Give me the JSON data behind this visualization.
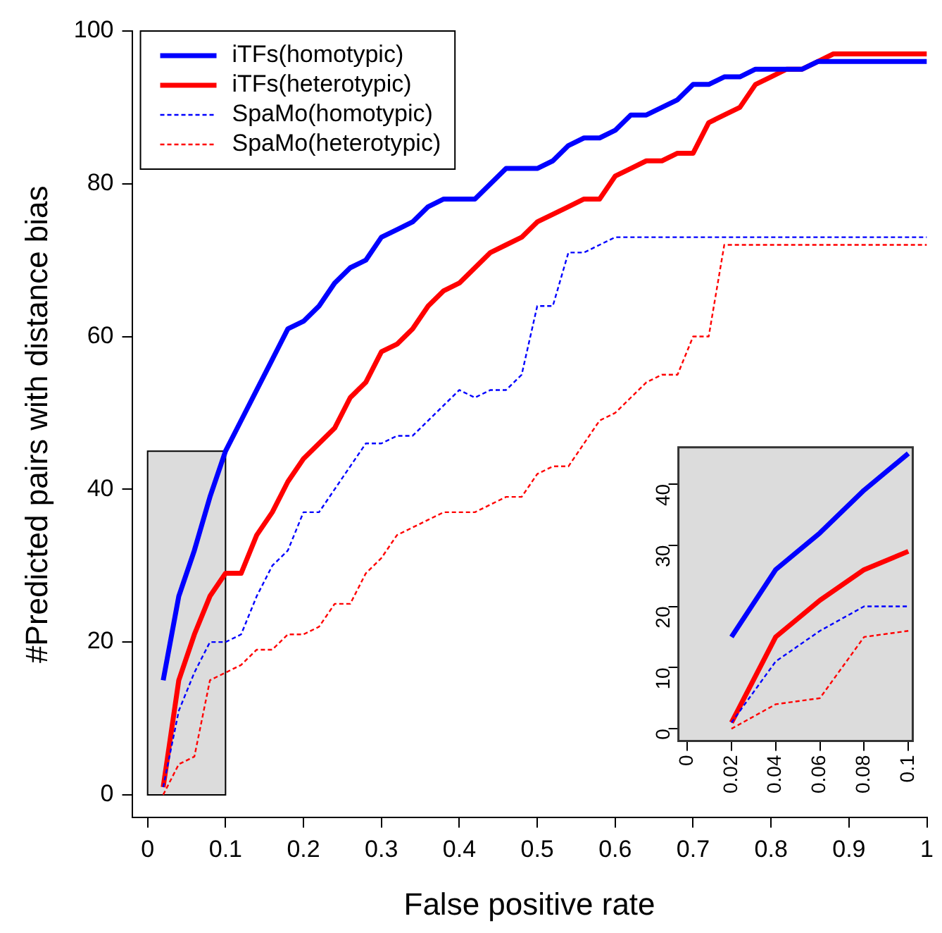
{
  "chart_data": [
    {
      "type": "line",
      "xlabel": "False positive rate",
      "ylabel": "#Predicted pairs with distance bias",
      "x": [
        0.02,
        0.04,
        0.06,
        0.08,
        0.1,
        0.12,
        0.14,
        0.16,
        0.18,
        0.2,
        0.22,
        0.24,
        0.26,
        0.28,
        0.3,
        0.32,
        0.34,
        0.36,
        0.38,
        0.4,
        0.42,
        0.44,
        0.46,
        0.48,
        0.5,
        0.52,
        0.54,
        0.56,
        0.58,
        0.6,
        0.62,
        0.64,
        0.66,
        0.68,
        0.7,
        0.72,
        0.74,
        0.76,
        0.78,
        0.8,
        0.82,
        0.84,
        0.86,
        0.88,
        0.9,
        0.92,
        0.94,
        0.96,
        0.98,
        1
      ],
      "series": [
        {
          "name": "iTFs(homotypic)",
          "color": "#0000ff",
          "line_style": "solid",
          "values": [
            15,
            26,
            32,
            39,
            45,
            49,
            53,
            57,
            61,
            62,
            64,
            67,
            69,
            70,
            73,
            74,
            75,
            77,
            78,
            78,
            78,
            80,
            82,
            82,
            82,
            83,
            85,
            86,
            86,
            87,
            89,
            89,
            90,
            91,
            93,
            93,
            94,
            94,
            95,
            95,
            95,
            95,
            96,
            96,
            96,
            96,
            96,
            96,
            96,
            96
          ]
        },
        {
          "name": "iTFs(heterotypic)",
          "color": "#ff0000",
          "line_style": "solid",
          "values": [
            1,
            15,
            21,
            26,
            29,
            29,
            34,
            37,
            41,
            44,
            46,
            48,
            52,
            54,
            58,
            59,
            61,
            64,
            66,
            67,
            69,
            71,
            72,
            73,
            75,
            76,
            77,
            78,
            78,
            81,
            82,
            83,
            83,
            84,
            84,
            88,
            89,
            90,
            93,
            94,
            95,
            95,
            96,
            97,
            97,
            97,
            97,
            97,
            97,
            97
          ]
        },
        {
          "name": "SpaMo(homotypic)",
          "color": "#0000ff",
          "line_style": "dashed",
          "values": [
            1,
            11,
            16,
            20,
            20,
            21,
            26,
            30,
            32,
            37,
            37,
            40,
            43,
            46,
            46,
            47,
            47,
            49,
            51,
            53,
            52,
            53,
            53,
            55,
            64,
            64,
            71,
            71,
            72,
            73,
            73,
            73,
            73,
            73,
            73,
            73,
            73,
            73,
            73,
            73,
            73,
            73,
            73,
            73,
            73,
            73,
            73,
            73,
            73,
            73
          ]
        },
        {
          "name": "SpaMo(heterotypic)",
          "color": "#ff0000",
          "line_style": "dashed",
          "values": [
            0,
            4,
            5,
            15,
            16,
            17,
            19,
            19,
            21,
            21,
            22,
            25,
            25,
            29,
            31,
            34,
            35,
            36,
            37,
            37,
            37,
            38,
            39,
            39,
            42,
            43,
            43,
            46,
            49,
            50,
            52,
            54,
            55,
            55,
            60,
            60,
            72,
            72,
            72,
            72,
            72,
            72,
            72,
            72,
            72,
            72,
            72,
            72,
            72,
            72
          ]
        }
      ],
      "xlim": [
        -0.02,
        1
      ],
      "ylim": [
        -3,
        100
      ],
      "xticks": [
        0,
        0.1,
        0.2,
        0.3,
        0.4,
        0.5,
        0.6,
        0.7,
        0.8,
        0.9,
        1
      ],
      "yticks": [
        0,
        20,
        40,
        60,
        80,
        100
      ],
      "bands": [
        {
          "axis": "x",
          "from": 0,
          "to": 0.1,
          "color": "#dcdcdc"
        }
      ],
      "grid": false,
      "legend": "top left"
    },
    {
      "type": "line",
      "x": [
        0.02,
        0.04,
        0.06,
        0.08,
        0.1
      ],
      "series": [
        {
          "color": "#0000ff",
          "line_style": "solid",
          "values": [
            15,
            26,
            32,
            39,
            45
          ]
        },
        {
          "color": "#ff0000",
          "line_style": "solid",
          "values": [
            1,
            15,
            21,
            26,
            29
          ]
        },
        {
          "color": "#0000ff",
          "line_style": "dashed",
          "values": [
            1,
            11,
            16,
            20,
            20
          ]
        },
        {
          "color": "#ff0000",
          "line_style": "dashed",
          "values": [
            0,
            4,
            5,
            15,
            16
          ]
        }
      ],
      "xlim": [
        -0.004,
        0.102
      ],
      "ylim": [
        -2,
        46
      ],
      "xticks": [
        0,
        0.02,
        0.04,
        0.06,
        0.08,
        0.1
      ],
      "yticks": [
        0,
        10,
        20,
        30,
        40
      ],
      "grid": false,
      "legend": false
    }
  ]
}
